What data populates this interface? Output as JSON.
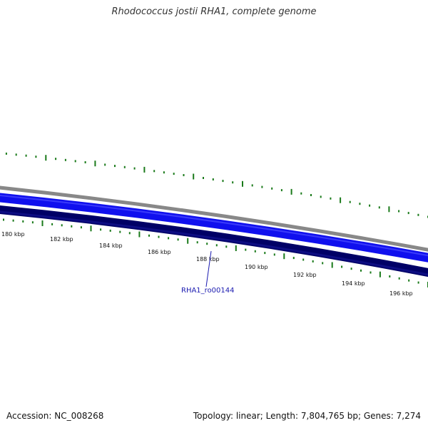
{
  "title": "Rhodococcus jostii RHA1, complete genome",
  "accession": "Accession: NC_008268",
  "summary": "Topology: linear; Length: 7,804,765 bp; Genes: 7,274",
  "ruler": {
    "labels": [
      "180 kbp",
      "182 kbp",
      "184 kbp",
      "186 kbp",
      "188 kbp",
      "190 kbp",
      "192 kbp",
      "194 kbp",
      "196 kbp"
    ]
  },
  "gene": {
    "label": "RHA1_ro00144"
  },
  "colors": {
    "ticks": "#1a7a1a",
    "backbone": "#888888",
    "forward_strand": "#1010ee",
    "reverse_strand": "#000066",
    "label_text": "#1a1ab0"
  }
}
